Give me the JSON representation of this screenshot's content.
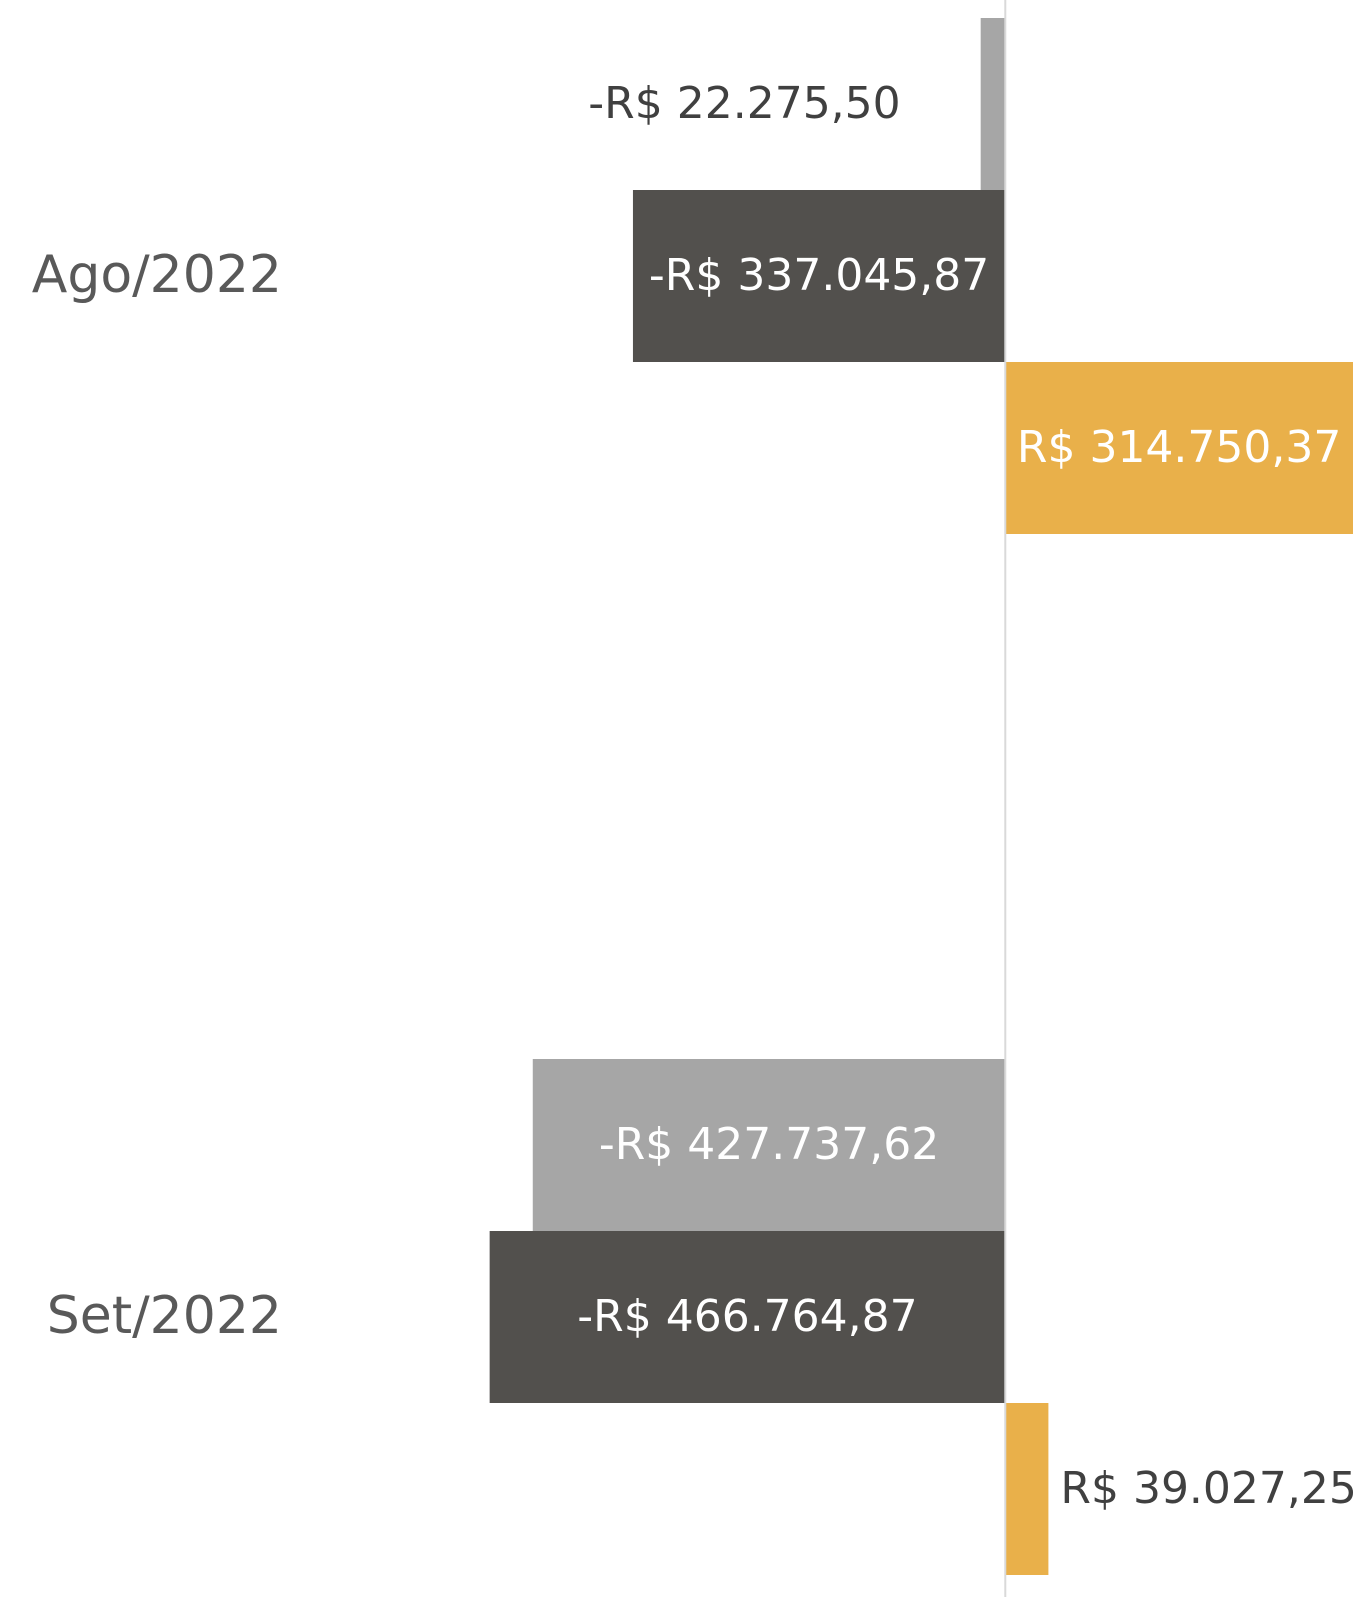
{
  "chart_data": {
    "type": "barh",
    "categories": [
      "Ago/2022",
      "Set/2022"
    ],
    "series": [
      {
        "color": "#a6a6a6",
        "values": [
          -22275.5,
          -427737.62
        ],
        "value_labels": [
          "-R$ 22.275,50",
          "-R$ 427.737,62"
        ]
      },
      {
        "color": "#52504d",
        "values": [
          -337045.87,
          -466764.87
        ],
        "value_labels": [
          "-R$ 337.045,87",
          "-R$ 466.764,87"
        ]
      },
      {
        "color": "#e9b04a",
        "values": [
          314750.37,
          39027.25
        ],
        "value_labels": [
          "R$ 314.750,37",
          "R$ 39.027,25"
        ]
      }
    ],
    "xlim": [
      -910000,
      322000
    ]
  }
}
